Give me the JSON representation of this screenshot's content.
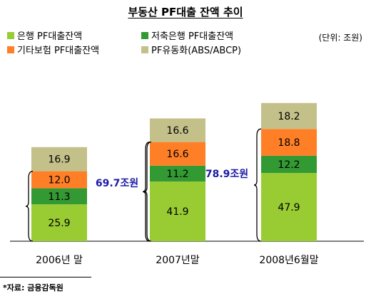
{
  "chart_data": {
    "type": "bar",
    "stacked": true,
    "title": "부동산 PF대출 잔액 추이",
    "unit": "(단위: 조원)",
    "categories": [
      "2006년 말",
      "2007년말",
      "2008년6월말"
    ],
    "series": [
      {
        "name": "은행 PF대출잔액",
        "color": "#99cc33",
        "values": [
          25.9,
          41.9,
          47.9
        ]
      },
      {
        "name": "저축은행 PF대출잔액",
        "color": "#339933",
        "values": [
          11.3,
          11.2,
          12.2
        ]
      },
      {
        "name": "기타보험 PF대출잔액",
        "color": "#ff7f27",
        "values": [
          12.0,
          16.6,
          18.8
        ]
      },
      {
        "name": "PF유동화(ABS/ABCP)",
        "color": "#c4c08a",
        "values": [
          16.9,
          16.6,
          18.2
        ]
      }
    ],
    "annotations": [
      {
        "label": "69.7조원",
        "color": "#1a1aa6"
      },
      {
        "label": "78.9조원",
        "color": "#1a1aa6"
      }
    ],
    "source": "*자료: 금융감독원"
  }
}
